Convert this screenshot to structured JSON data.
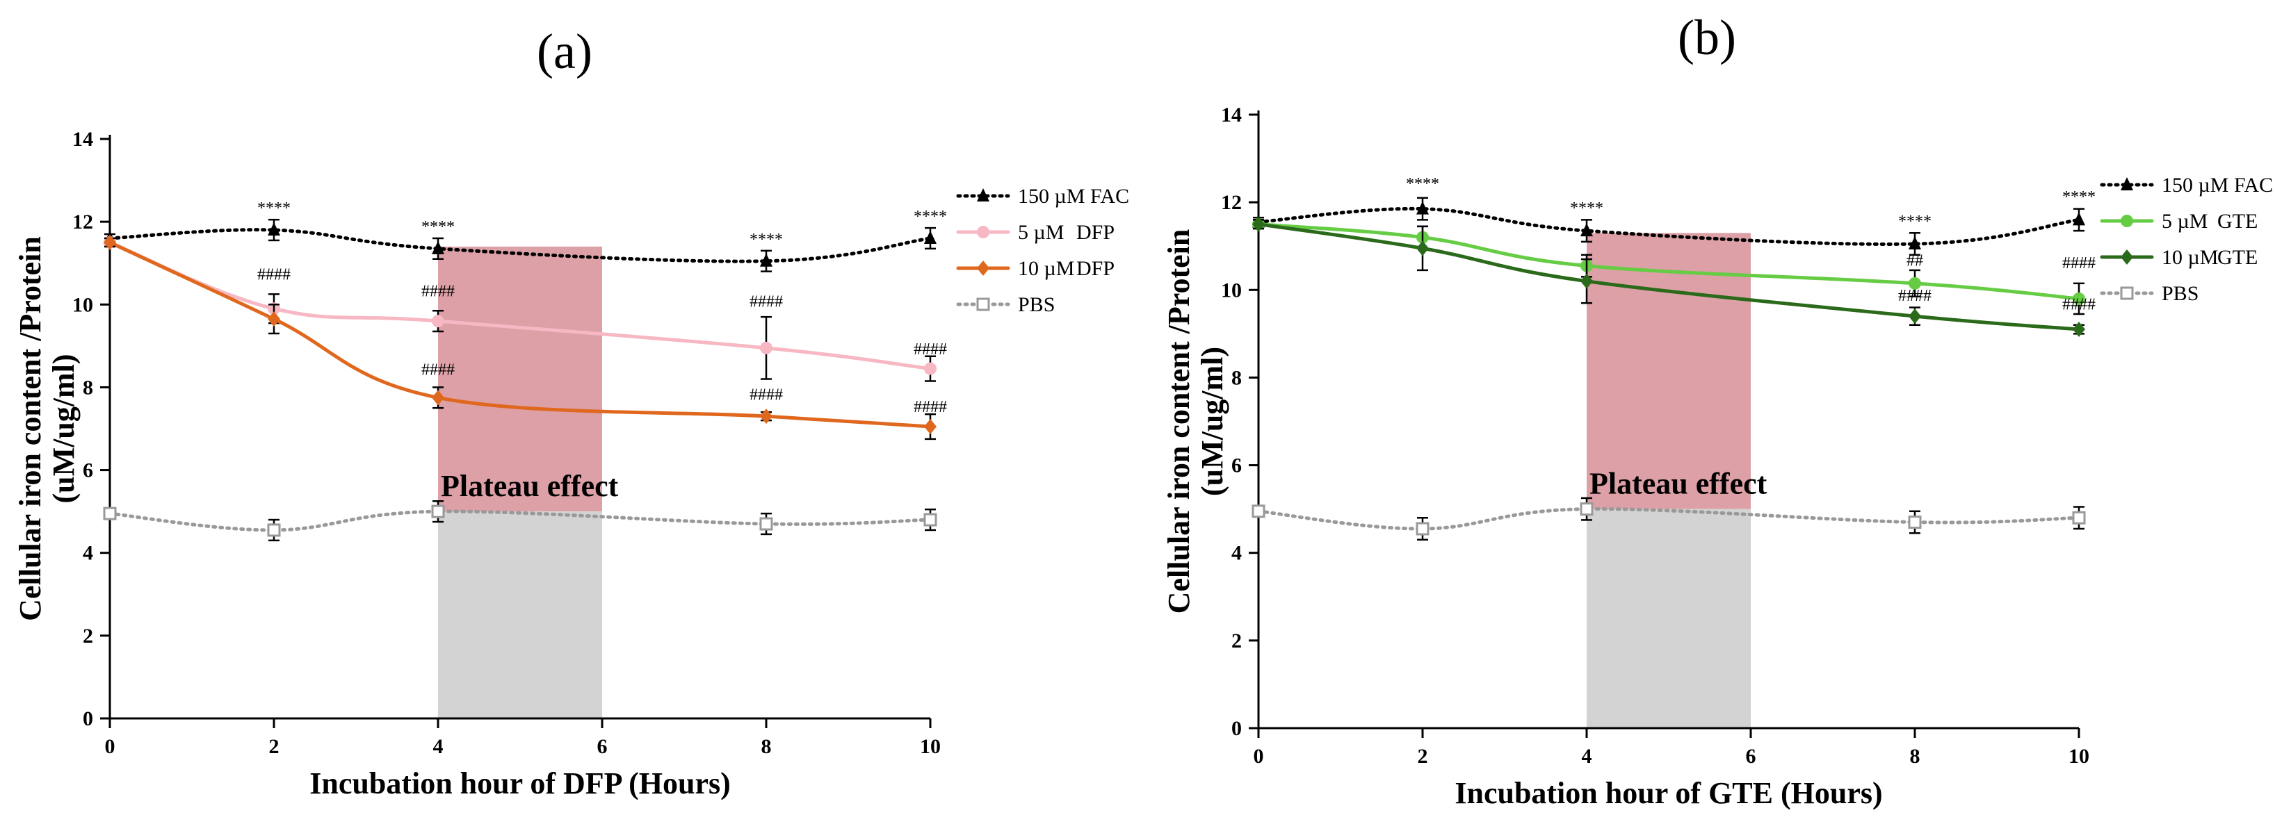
{
  "chart_data": [
    {
      "type": "line",
      "panel_label": "(a)",
      "title": "",
      "xlabel": "Incubation hour of DFP (Hours)",
      "ylabel_line1": "Cellular iron content /Protein",
      "ylabel_line2": "(uM/ug/ml)",
      "xlim": [
        0,
        10
      ],
      "ylim": [
        0,
        14
      ],
      "xticks": [
        0,
        2,
        4,
        6,
        8,
        10
      ],
      "yticks": [
        0,
        2,
        4,
        6,
        8,
        10,
        12,
        14
      ],
      "grid": false,
      "legend_position": "top-right",
      "x": [
        0,
        2,
        4,
        8,
        10
      ],
      "series": [
        {
          "name": "150 µM FAC",
          "values": [
            11.6,
            11.8,
            11.35,
            11.05,
            11.6
          ],
          "errors": [
            0.1,
            0.25,
            0.25,
            0.25,
            0.25
          ],
          "color": "#000000",
          "style": "dotted",
          "marker": "triangle"
        },
        {
          "name": "5 µM DFP",
          "values": [
            11.5,
            9.9,
            9.6,
            8.95,
            8.45
          ],
          "errors": [
            0.1,
            0.35,
            0.25,
            0.75,
            0.3
          ],
          "color": "#f7b7c3",
          "style": "solid",
          "marker": "circle"
        },
        {
          "name": "10 µM DFP",
          "values": [
            11.5,
            9.65,
            7.75,
            7.3,
            7.05
          ],
          "errors": [
            0.1,
            0.35,
            0.25,
            0.1,
            0.3
          ],
          "color": "#e0681e",
          "style": "solid",
          "marker": "diamond"
        },
        {
          "name": "PBS",
          "values": [
            4.95,
            4.55,
            5.0,
            4.7,
            4.8
          ],
          "errors": [
            0.1,
            0.25,
            0.25,
            0.25,
            0.25
          ],
          "color": "#999999",
          "style": "dotted",
          "marker": "square"
        }
      ],
      "legend_items": [
        {
          "name": "150 µM FAC"
        },
        {
          "name": "5 µM",
          "suffix": "DFP"
        },
        {
          "name": "10 µM",
          "suffix": "DFP"
        },
        {
          "name": "PBS"
        }
      ],
      "shaded_regions": [
        {
          "x_range": [
            4,
            6
          ],
          "y_range": [
            5,
            11.4
          ],
          "color": "#dca0a6",
          "label": "Plateau effect"
        },
        {
          "x_range": [
            4,
            6
          ],
          "y_range": [
            0,
            5
          ],
          "color": "#d3d3d3"
        }
      ],
      "annotations": [
        {
          "x": 2,
          "y": 12.2,
          "text": "****"
        },
        {
          "x": 4,
          "y": 11.75,
          "text": "****"
        },
        {
          "x": 8,
          "y": 11.45,
          "text": "****"
        },
        {
          "x": 10,
          "y": 12.0,
          "text": "****"
        },
        {
          "x": 2,
          "y": 10.6,
          "text": "####"
        },
        {
          "x": 4,
          "y": 10.2,
          "text": "####"
        },
        {
          "x": 4,
          "y": 8.3,
          "text": "####"
        },
        {
          "x": 8,
          "y": 9.95,
          "text": "####"
        },
        {
          "x": 8,
          "y": 7.7,
          "text": "####"
        },
        {
          "x": 10,
          "y": 8.8,
          "text": "####"
        },
        {
          "x": 10,
          "y": 7.4,
          "text": "####"
        }
      ]
    },
    {
      "type": "line",
      "panel_label": "(b)",
      "title": "",
      "xlabel": "Incubation hour of GTE (Hours)",
      "ylabel_line1": "Cellular iron content /Protein",
      "ylabel_line2": "(uM/ug/ml)",
      "xlim": [
        0,
        10
      ],
      "ylim": [
        0,
        14
      ],
      "xticks": [
        0,
        2,
        4,
        6,
        8,
        10
      ],
      "yticks": [
        0,
        2,
        4,
        6,
        8,
        10,
        12,
        14
      ],
      "grid": false,
      "legend_position": "top-right",
      "x": [
        0,
        2,
        4,
        8,
        10
      ],
      "series": [
        {
          "name": "150 µM FAC",
          "values": [
            11.55,
            11.85,
            11.35,
            11.05,
            11.6
          ],
          "errors": [
            0.1,
            0.25,
            0.25,
            0.25,
            0.25
          ],
          "color": "#000000",
          "style": "dotted",
          "marker": "triangle"
        },
        {
          "name": "5 µM GTE",
          "values": [
            11.5,
            11.2,
            10.55,
            10.15,
            9.8
          ],
          "errors": [
            0.1,
            0.25,
            0.25,
            0.3,
            0.35
          ],
          "color": "#66cc44",
          "style": "solid",
          "marker": "circle"
        },
        {
          "name": "10 µM GTE",
          "values": [
            11.5,
            10.95,
            10.2,
            9.4,
            9.1
          ],
          "errors": [
            0.1,
            0.5,
            0.5,
            0.2,
            0.1
          ],
          "color": "#2a6a1a",
          "style": "solid",
          "marker": "diamond"
        },
        {
          "name": "PBS",
          "values": [
            4.95,
            4.55,
            5.0,
            4.7,
            4.8
          ],
          "errors": [
            0.1,
            0.25,
            0.25,
            0.25,
            0.25
          ],
          "color": "#999999",
          "style": "dotted",
          "marker": "square"
        }
      ],
      "legend_items": [
        {
          "name": "150 µM FAC"
        },
        {
          "name": "5 µM",
          "suffix": "GTE"
        },
        {
          "name": "10 µM",
          "suffix": "GTE"
        },
        {
          "name": "PBS"
        }
      ],
      "shaded_regions": [
        {
          "x_range": [
            4,
            6
          ],
          "y_range": [
            5,
            11.3
          ],
          "color": "#dca0a6",
          "label": "Plateau effect"
        },
        {
          "x_range": [
            4,
            6
          ],
          "y_range": [
            0,
            5
          ],
          "color": "#d3d3d3"
        }
      ],
      "annotations": [
        {
          "x": 2,
          "y": 12.3,
          "text": "****"
        },
        {
          "x": 4,
          "y": 11.75,
          "text": "****"
        },
        {
          "x": 8,
          "y": 11.45,
          "text": "****"
        },
        {
          "x": 10,
          "y": 12.0,
          "text": "****"
        },
        {
          "x": 8,
          "y": 10.55,
          "text": "##"
        },
        {
          "x": 8,
          "y": 9.75,
          "text": "####"
        },
        {
          "x": 10,
          "y": 10.5,
          "text": "####"
        },
        {
          "x": 10,
          "y": 9.55,
          "text": "####"
        }
      ]
    }
  ]
}
